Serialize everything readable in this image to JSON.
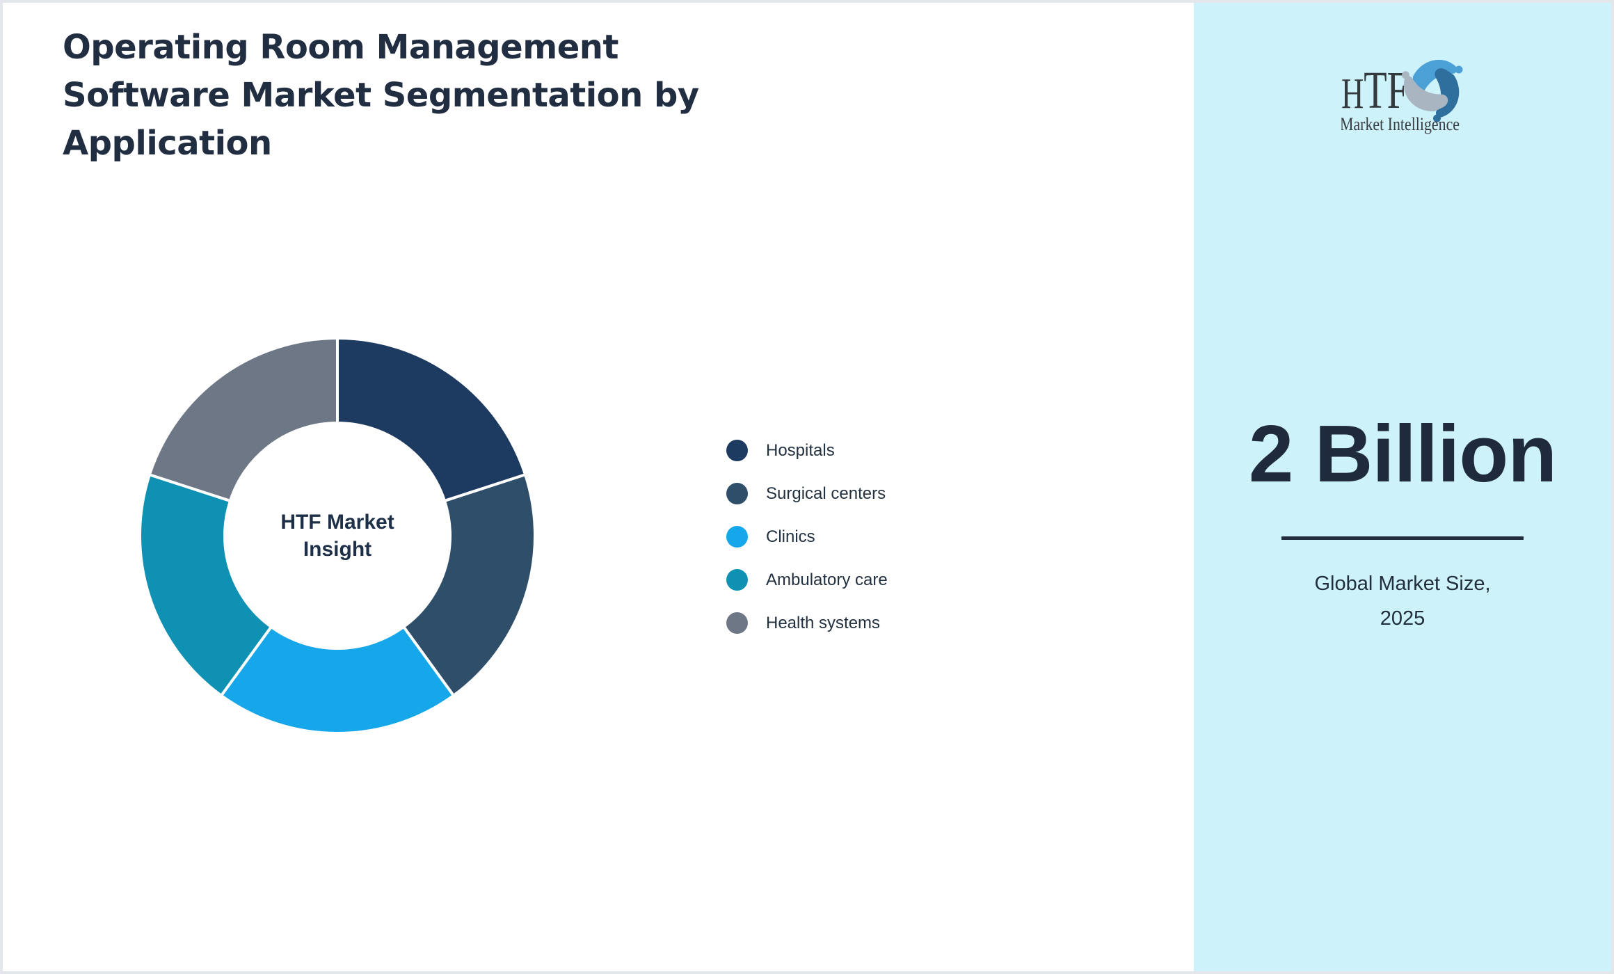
{
  "page": {
    "background": "#ffffff",
    "border_color": "#e3e6ea"
  },
  "header": {
    "title_lines": [
      "Operating Room Management",
      "Software Market Segmentation by",
      "Application"
    ]
  },
  "logo": {
    "text": "HTF",
    "subtext": "Market Intelligence",
    "text_color": "#34393e",
    "mark_colors": [
      "#4ba0d6",
      "#2e6f9e",
      "#a9b6c1"
    ]
  },
  "chart_data": {
    "type": "pie",
    "subtype": "donut",
    "title": "Operating Room Management Software Market Segmentation by Application",
    "center_label_lines": [
      "HTF Market",
      "Insight"
    ],
    "categories": [
      "Hospitals",
      "Surgical centers",
      "Clinics",
      "Ambulatory care",
      "Health systems"
    ],
    "values": [
      20,
      20,
      20,
      20,
      20
    ],
    "colors": [
      "#1d3a60",
      "#2f4e6a",
      "#16a7ea",
      "#0e91b2",
      "#6d7785"
    ],
    "start_angle_deg": 0,
    "direction": "clockwise",
    "inner_radius_ratio": 0.57,
    "segment_gap_color": "#ffffff",
    "legend_position": "right"
  },
  "side_panel": {
    "background": "#cef2fa",
    "market_size_value": "2 Billion",
    "caption_lines": [
      "Global Market Size,",
      "2025"
    ],
    "divider_color": "#222d3d"
  }
}
